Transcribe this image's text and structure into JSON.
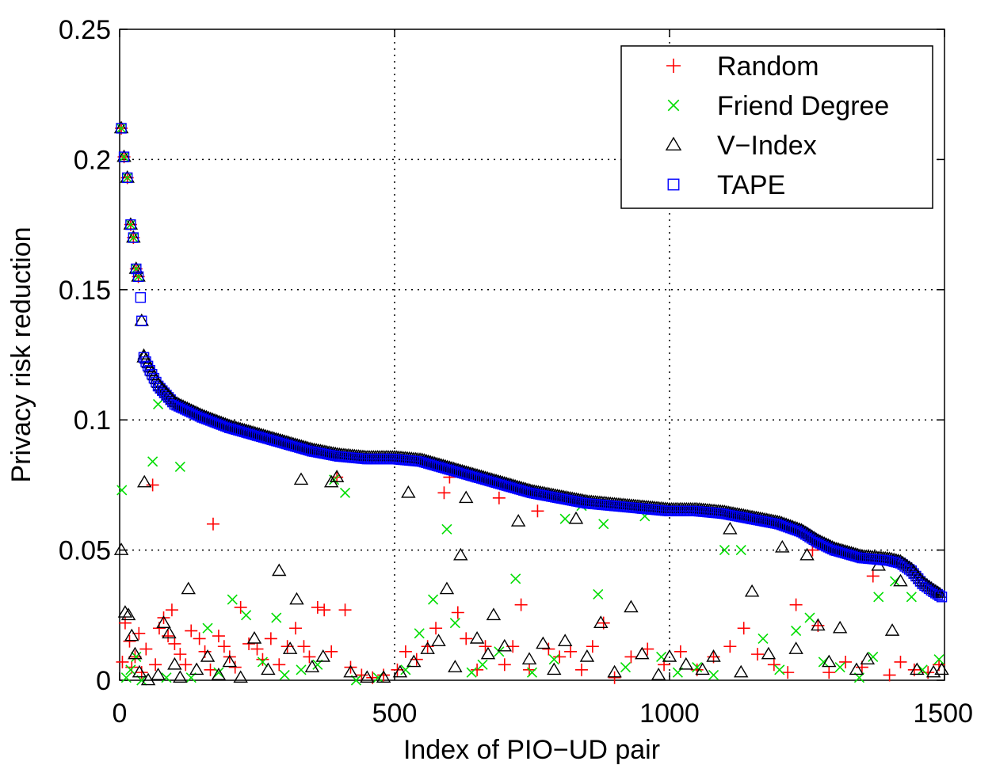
{
  "chart_data": {
    "type": "scatter",
    "title": "",
    "xlabel": "Index of PIO−UD pair",
    "ylabel": "Privacy risk reduction",
    "xlim": [
      0,
      1500
    ],
    "ylim": [
      0,
      0.25
    ],
    "x_ticks": [
      0,
      500,
      1000,
      1500
    ],
    "x_tick_labels": [
      "0",
      "500",
      "1000",
      "1500"
    ],
    "y_ticks": [
      0,
      0.05,
      0.1,
      0.15,
      0.2,
      0.25
    ],
    "y_tick_labels": [
      "0",
      "0.05",
      "0.1",
      "0.15",
      "0.2",
      "0.25"
    ],
    "grid": true,
    "legend_position": "top-right",
    "series": [
      {
        "name": "Random",
        "marker": "plus",
        "color": "#ff0000",
        "points": [
          [
            3,
            0.212
          ],
          [
            8,
            0.201
          ],
          [
            14,
            0.193
          ],
          [
            20,
            0.175
          ],
          [
            25,
            0.17
          ],
          [
            30,
            0.158
          ],
          [
            34,
            0.155
          ],
          [
            5,
            0.007
          ],
          [
            10,
            0.022
          ],
          [
            18,
            0.015
          ],
          [
            22,
            0.005
          ],
          [
            28,
            0.009
          ],
          [
            35,
            0.018
          ],
          [
            40,
            0.003
          ],
          [
            48,
            0.012
          ],
          [
            60,
            0.075
          ],
          [
            65,
            0.006
          ],
          [
            72,
            0.02
          ],
          [
            80,
            0.024
          ],
          [
            88,
            0.017
          ],
          [
            95,
            0.027
          ],
          [
            100,
            0.014
          ],
          [
            110,
            0.01
          ],
          [
            120,
            0.006
          ],
          [
            130,
            0.019
          ],
          [
            145,
            0.016
          ],
          [
            155,
            0.011
          ],
          [
            165,
            0.004
          ],
          [
            170,
            0.06
          ],
          [
            180,
            0.017
          ],
          [
            190,
            0.013
          ],
          [
            200,
            0.009
          ],
          [
            210,
            0.005
          ],
          [
            220,
            0.028
          ],
          [
            235,
            0.014
          ],
          [
            250,
            0.012
          ],
          [
            260,
            0.008
          ],
          [
            275,
            0.016
          ],
          [
            290,
            0.006
          ],
          [
            305,
            0.013
          ],
          [
            320,
            0.02
          ],
          [
            335,
            0.013
          ],
          [
            345,
            0.009
          ],
          [
            360,
            0.028
          ],
          [
            372,
            0.027
          ],
          [
            385,
            0.011
          ],
          [
            395,
            0.078
          ],
          [
            410,
            0.027
          ],
          [
            420,
            0.005
          ],
          [
            440,
            0.002
          ],
          [
            460,
            0.001
          ],
          [
            480,
            0.002
          ],
          [
            505,
            0.004
          ],
          [
            520,
            0.011
          ],
          [
            540,
            0.008
          ],
          [
            560,
            0.013
          ],
          [
            575,
            0.02
          ],
          [
            590,
            0.072
          ],
          [
            600,
            0.078
          ],
          [
            615,
            0.026
          ],
          [
            630,
            0.016
          ],
          [
            650,
            0.004
          ],
          [
            665,
            0.013
          ],
          [
            690,
            0.07
          ],
          [
            700,
            0.006
          ],
          [
            715,
            0.013
          ],
          [
            730,
            0.029
          ],
          [
            745,
            0.004
          ],
          [
            760,
            0.065
          ],
          [
            780,
            0.012
          ],
          [
            800,
            0.009
          ],
          [
            820,
            0.011
          ],
          [
            840,
            0.004
          ],
          [
            860,
            0.013
          ],
          [
            880,
            0.022
          ],
          [
            900,
            0.001
          ],
          [
            930,
            0.009
          ],
          [
            960,
            0.012
          ],
          [
            990,
            0.006
          ],
          [
            1020,
            0.011
          ],
          [
            1050,
            0.004
          ],
          [
            1080,
            0.009
          ],
          [
            1110,
            0.013
          ],
          [
            1135,
            0.02
          ],
          [
            1160,
            0.01
          ],
          [
            1190,
            0.006
          ],
          [
            1215,
            0.003
          ],
          [
            1230,
            0.029
          ],
          [
            1260,
            0.05
          ],
          [
            1270,
            0.021
          ],
          [
            1290,
            0.003
          ],
          [
            1320,
            0.007
          ],
          [
            1350,
            0.005
          ],
          [
            1370,
            0.04
          ],
          [
            1400,
            0.002
          ],
          [
            1420,
            0.007
          ],
          [
            1445,
            0.004
          ],
          [
            1470,
            0.003
          ],
          [
            1490,
            0.006
          ]
        ]
      },
      {
        "name": "Friend Degree",
        "marker": "x",
        "color": "#00dd00",
        "points": [
          [
            3,
            0.212
          ],
          [
            8,
            0.201
          ],
          [
            14,
            0.193
          ],
          [
            20,
            0.175
          ],
          [
            25,
            0.17
          ],
          [
            30,
            0.158
          ],
          [
            34,
            0.155
          ],
          [
            4,
            0.073
          ],
          [
            12,
            0.001
          ],
          [
            20,
            0.004
          ],
          [
            30,
            0.009
          ],
          [
            40,
            0.0
          ],
          [
            60,
            0.084
          ],
          [
            70,
            0.106
          ],
          [
            85,
            0.001
          ],
          [
            110,
            0.082
          ],
          [
            130,
            0.001
          ],
          [
            160,
            0.02
          ],
          [
            180,
            0.003
          ],
          [
            205,
            0.031
          ],
          [
            230,
            0.025
          ],
          [
            260,
            0.007
          ],
          [
            285,
            0.024
          ],
          [
            300,
            0.002
          ],
          [
            330,
            0.004
          ],
          [
            360,
            0.006
          ],
          [
            390,
            0.077
          ],
          [
            410,
            0.072
          ],
          [
            430,
            0.0
          ],
          [
            470,
            0.001
          ],
          [
            520,
            0.004
          ],
          [
            545,
            0.018
          ],
          [
            570,
            0.031
          ],
          [
            595,
            0.058
          ],
          [
            610,
            0.022
          ],
          [
            640,
            0.003
          ],
          [
            660,
            0.006
          ],
          [
            690,
            0.011
          ],
          [
            720,
            0.039
          ],
          [
            750,
            0.003
          ],
          [
            790,
            0.008
          ],
          [
            810,
            0.062
          ],
          [
            840,
            0.067
          ],
          [
            870,
            0.033
          ],
          [
            880,
            0.06
          ],
          [
            920,
            0.005
          ],
          [
            955,
            0.063
          ],
          [
            985,
            0.009
          ],
          [
            1015,
            0.003
          ],
          [
            1050,
            0.005
          ],
          [
            1080,
            0.002
          ],
          [
            1100,
            0.05
          ],
          [
            1130,
            0.05
          ],
          [
            1170,
            0.016
          ],
          [
            1200,
            0.004
          ],
          [
            1230,
            0.019
          ],
          [
            1255,
            0.024
          ],
          [
            1280,
            0.007
          ],
          [
            1310,
            0.005
          ],
          [
            1345,
            0.001
          ],
          [
            1370,
            0.009
          ],
          [
            1380,
            0.032
          ],
          [
            1410,
            0.038
          ],
          [
            1440,
            0.032
          ],
          [
            1460,
            0.004
          ],
          [
            1490,
            0.008
          ]
        ]
      },
      {
        "name": "V−Index",
        "marker": "triangle",
        "color": "#000000",
        "points": [
          [
            3,
            0.212
          ],
          [
            8,
            0.201
          ],
          [
            14,
            0.193
          ],
          [
            20,
            0.175
          ],
          [
            25,
            0.17
          ],
          [
            30,
            0.158
          ],
          [
            34,
            0.155
          ],
          [
            40,
            0.138
          ],
          [
            44,
            0.124
          ],
          [
            3,
            0.05
          ],
          [
            10,
            0.026
          ],
          [
            16,
            0.025
          ],
          [
            22,
            0.017
          ],
          [
            28,
            0.01
          ],
          [
            36,
            0.003
          ],
          [
            45,
            0.076
          ],
          [
            52,
            0.0
          ],
          [
            70,
            0.002
          ],
          [
            80,
            0.022
          ],
          [
            90,
            0.018
          ],
          [
            100,
            0.006
          ],
          [
            110,
            0.001
          ],
          [
            125,
            0.035
          ],
          [
            140,
            0.004
          ],
          [
            160,
            0.009
          ],
          [
            180,
            0.002
          ],
          [
            200,
            0.007
          ],
          [
            220,
            0.001
          ],
          [
            245,
            0.016
          ],
          [
            270,
            0.004
          ],
          [
            290,
            0.042
          ],
          [
            310,
            0.012
          ],
          [
            322,
            0.031
          ],
          [
            330,
            0.077
          ],
          [
            350,
            0.005
          ],
          [
            370,
            0.009
          ],
          [
            385,
            0.076
          ],
          [
            395,
            0.078
          ],
          [
            420,
            0.003
          ],
          [
            450,
            0.001
          ],
          [
            480,
            0.001
          ],
          [
            510,
            0.003
          ],
          [
            525,
            0.072
          ],
          [
            535,
            0.007
          ],
          [
            560,
            0.012
          ],
          [
            580,
            0.015
          ],
          [
            595,
            0.035
          ],
          [
            610,
            0.005
          ],
          [
            620,
            0.048
          ],
          [
            630,
            0.07
          ],
          [
            650,
            0.016
          ],
          [
            670,
            0.01
          ],
          [
            680,
            0.025
          ],
          [
            700,
            0.013
          ],
          [
            725,
            0.061
          ],
          [
            745,
            0.008
          ],
          [
            770,
            0.014
          ],
          [
            790,
            0.004
          ],
          [
            810,
            0.015
          ],
          [
            830,
            0.062
          ],
          [
            850,
            0.009
          ],
          [
            875,
            0.022
          ],
          [
            900,
            0.003
          ],
          [
            930,
            0.028
          ],
          [
            950,
            0.01
          ],
          [
            980,
            0.002
          ],
          [
            1000,
            0.009
          ],
          [
            1030,
            0.006
          ],
          [
            1060,
            0.004
          ],
          [
            1080,
            0.009
          ],
          [
            1110,
            0.058
          ],
          [
            1130,
            0.003
          ],
          [
            1150,
            0.034
          ],
          [
            1180,
            0.01
          ],
          [
            1205,
            0.051
          ],
          [
            1230,
            0.012
          ],
          [
            1250,
            0.048
          ],
          [
            1270,
            0.021
          ],
          [
            1290,
            0.007
          ],
          [
            1310,
            0.02
          ],
          [
            1340,
            0.004
          ],
          [
            1360,
            0.008
          ],
          [
            1380,
            0.044
          ],
          [
            1405,
            0.019
          ],
          [
            1420,
            0.038
          ],
          [
            1450,
            0.004
          ],
          [
            1480,
            0.003
          ],
          [
            1495,
            0.004
          ]
        ]
      },
      {
        "name": "TAPE",
        "marker": "square",
        "color": "#0000ff",
        "points": [
          [
            3,
            0.212
          ],
          [
            8,
            0.201
          ],
          [
            14,
            0.193
          ],
          [
            20,
            0.175
          ],
          [
            25,
            0.17
          ],
          [
            30,
            0.158
          ],
          [
            34,
            0.155
          ],
          [
            38,
            0.147
          ],
          [
            40,
            0.138
          ],
          [
            44,
            0.124
          ],
          [
            55,
            0.119
          ],
          [
            70,
            0.113
          ],
          [
            100,
            0.106
          ],
          [
            150,
            0.101
          ],
          [
            200,
            0.097
          ],
          [
            250,
            0.094
          ],
          [
            300,
            0.091
          ],
          [
            350,
            0.088
          ],
          [
            400,
            0.086
          ],
          [
            450,
            0.085
          ],
          [
            500,
            0.085
          ],
          [
            550,
            0.084
          ],
          [
            600,
            0.081
          ],
          [
            650,
            0.078
          ],
          [
            700,
            0.075
          ],
          [
            750,
            0.072
          ],
          [
            800,
            0.07
          ],
          [
            850,
            0.068
          ],
          [
            900,
            0.067
          ],
          [
            950,
            0.066
          ],
          [
            1000,
            0.065
          ],
          [
            1050,
            0.065
          ],
          [
            1100,
            0.064
          ],
          [
            1150,
            0.062
          ],
          [
            1200,
            0.06
          ],
          [
            1240,
            0.057
          ],
          [
            1270,
            0.053
          ],
          [
            1300,
            0.05
          ],
          [
            1350,
            0.047
          ],
          [
            1400,
            0.046
          ],
          [
            1420,
            0.045
          ],
          [
            1440,
            0.042
          ],
          [
            1460,
            0.037
          ],
          [
            1480,
            0.034
          ],
          [
            1495,
            0.032
          ]
        ]
      }
    ]
  }
}
